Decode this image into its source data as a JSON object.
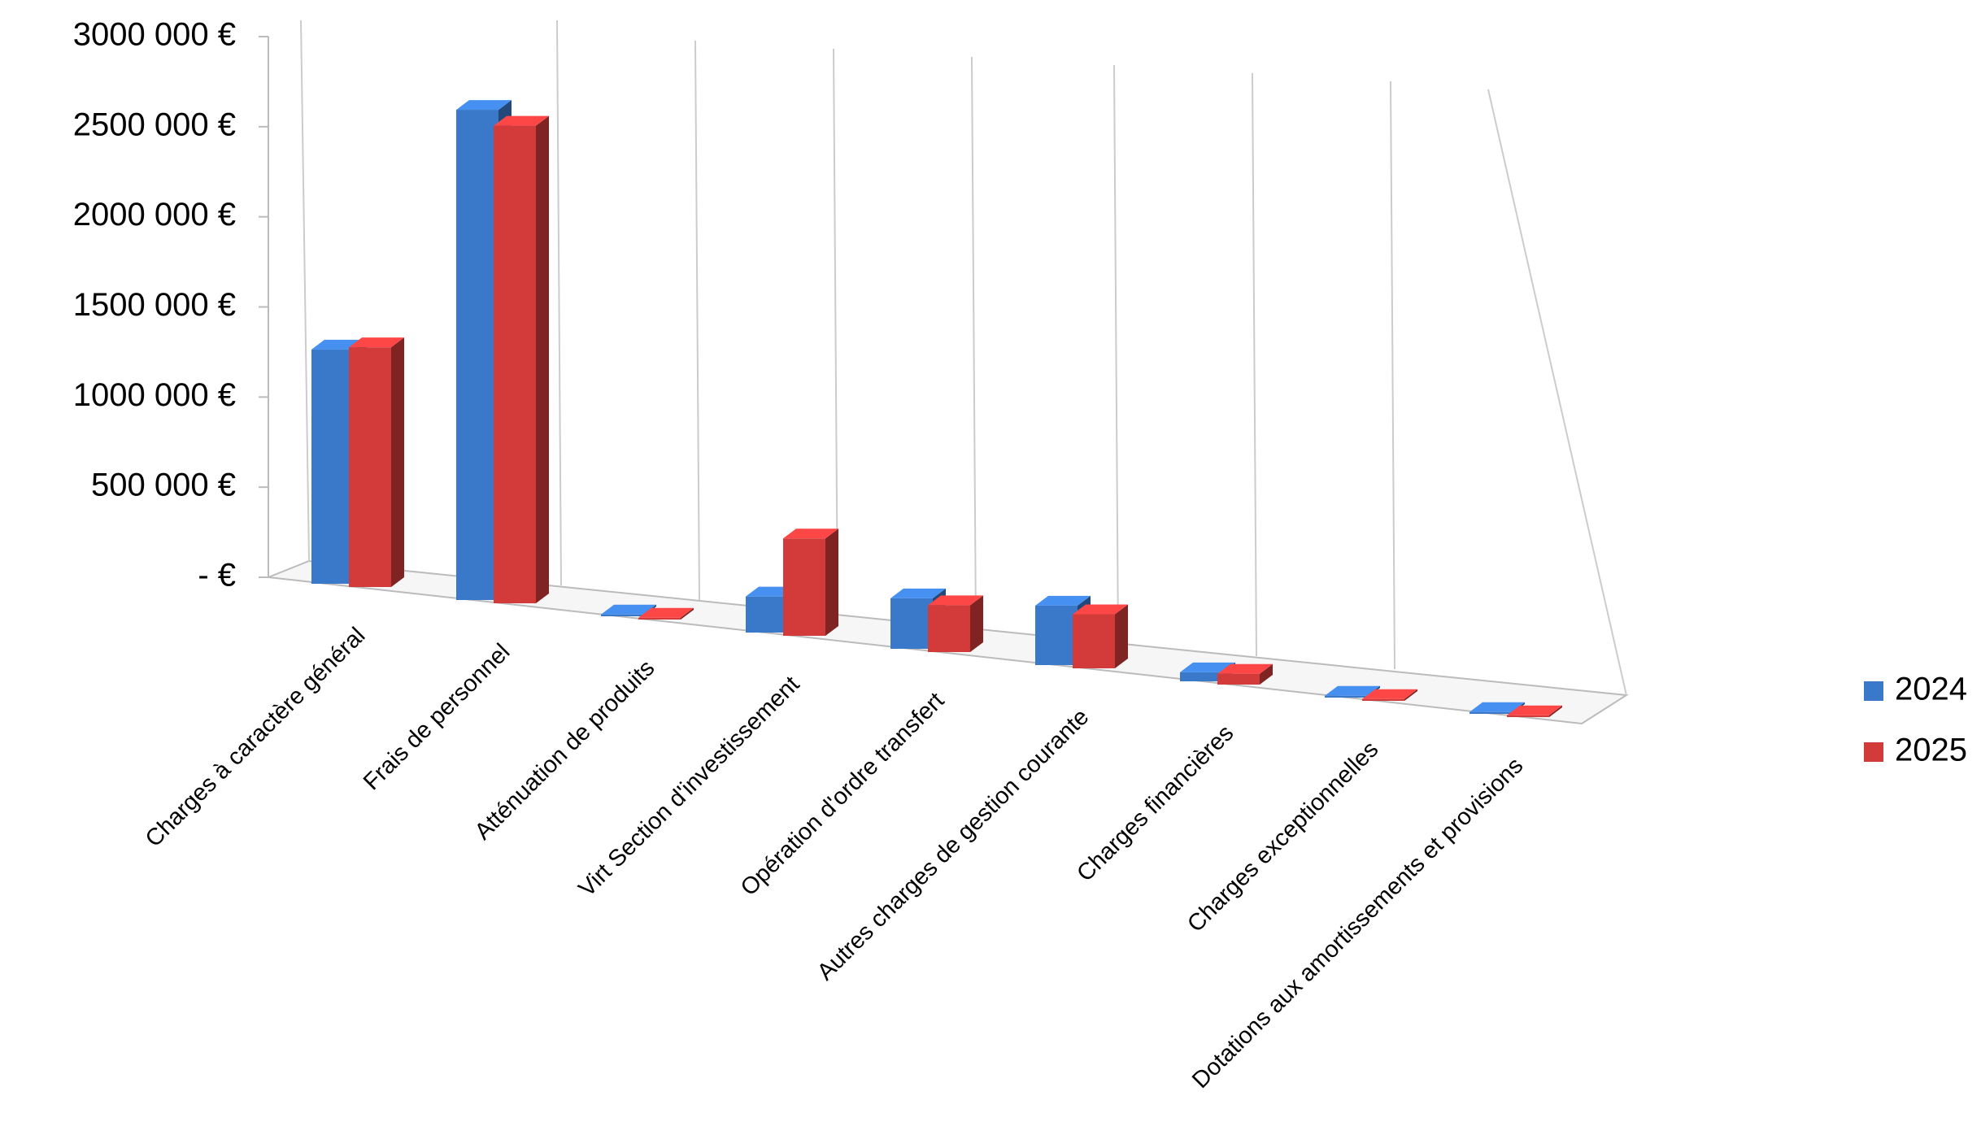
{
  "chart_data": {
    "type": "bar3d",
    "categories": [
      "Charges à caractère général",
      "Frais de personnel",
      "Atténuation de produits",
      "Virt Section d'investissement",
      "Opération d'ordre transfert",
      "Autres charges de gestion courante",
      "Charges financières",
      "Charges exceptionnelles",
      "Dotations aux amortissements et provisions"
    ],
    "series": [
      {
        "name": "2024",
        "color": "#3a78c9",
        "values": [
          1300000,
          2720000,
          10000,
          200000,
          280000,
          330000,
          50000,
          10000,
          10000
        ]
      },
      {
        "name": "2025",
        "color": "#d33a3a",
        "values": [
          1330000,
          2650000,
          10000,
          540000,
          260000,
          300000,
          60000,
          10000,
          10000
        ]
      }
    ],
    "ylim": [
      0,
      3000000
    ],
    "yticks": [
      {
        "value": 0,
        "label": "-   €"
      },
      {
        "value": 500000,
        "label": "500 000 €"
      },
      {
        "value": 1000000,
        "label": "1000 000 €"
      },
      {
        "value": 1500000,
        "label": "1500 000 €"
      },
      {
        "value": 2000000,
        "label": "2000 000 €"
      },
      {
        "value": 2500000,
        "label": "2500 000 €"
      },
      {
        "value": 3000000,
        "label": "3000 000 €"
      }
    ],
    "legend": "right"
  }
}
